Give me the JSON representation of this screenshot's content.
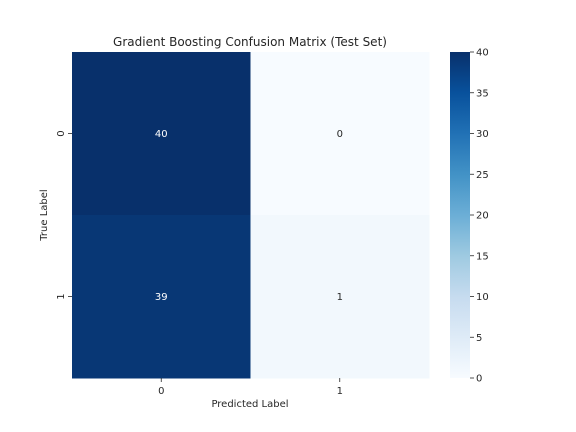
{
  "chart_data": {
    "type": "heatmap",
    "title": "Gradient Boosting Confusion Matrix (Test Set)",
    "xlabel": "Predicted Label",
    "ylabel": "True Label",
    "x_categories": [
      "0",
      "1"
    ],
    "y_categories": [
      "0",
      "1"
    ],
    "values": [
      [
        40,
        0
      ],
      [
        39,
        1
      ]
    ],
    "annotations": [
      [
        "40",
        "0"
      ],
      [
        "39",
        "1"
      ]
    ],
    "colormap": "Blues",
    "colorbar": {
      "range": [
        0,
        40
      ],
      "ticks": [
        0,
        5,
        10,
        15,
        20,
        25,
        30,
        35,
        40
      ]
    },
    "grid": false
  }
}
